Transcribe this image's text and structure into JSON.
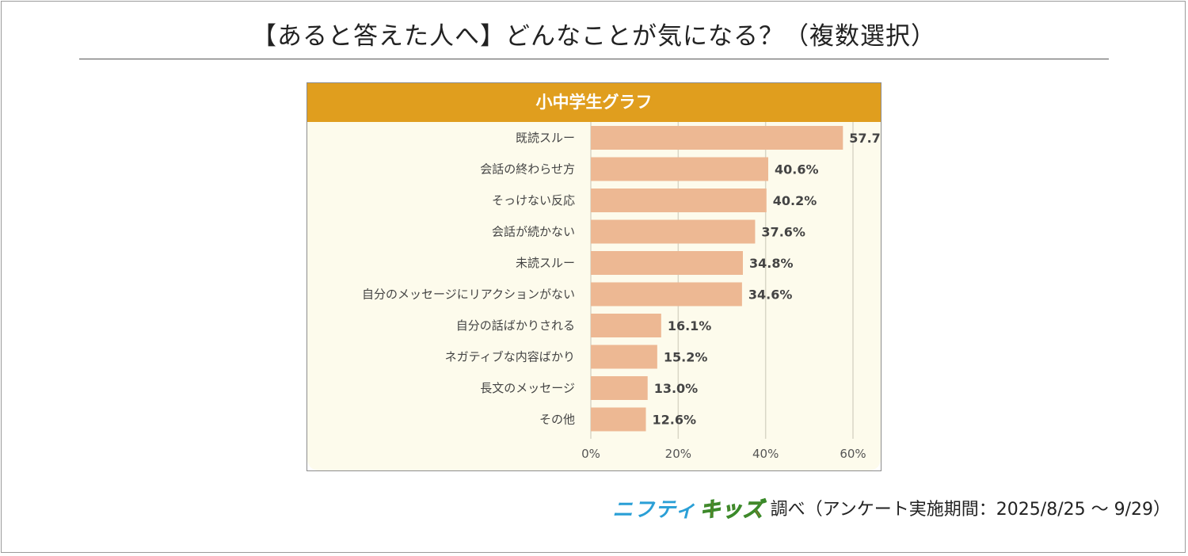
{
  "page": {
    "title": "【あると答えた人へ】どんなことが気になる？（複数選択）",
    "source_brand_1": "ニフティ",
    "source_brand_2": "キッズ",
    "source_text": "調べ（アンケート実施期間：2025/8/25 ～ 9/29）"
  },
  "chart_data": {
    "type": "bar",
    "orientation": "horizontal",
    "title": "小中学生グラフ",
    "categories": [
      "既読スルー",
      "会話の終わらせ方",
      "そっけない反応",
      "会話が続かない",
      "未読スルー",
      "自分のメッセージにリアクションがない",
      "自分の話ばかりされる",
      "ネガティブな内容ばかり",
      "長文のメッセージ",
      "その他"
    ],
    "values": [
      57.7,
      40.6,
      40.2,
      37.6,
      34.8,
      34.6,
      16.1,
      15.2,
      13.0,
      12.6
    ],
    "value_labels": [
      "57.7%",
      "40.6%",
      "40.2%",
      "37.6%",
      "34.8%",
      "34.6%",
      "16.1%",
      "15.2%",
      "13.0%",
      "12.6%"
    ],
    "xlim": [
      0,
      60
    ],
    "xticks": [
      0,
      20,
      40,
      60
    ],
    "xtick_labels": [
      "0%",
      "20%",
      "40%",
      "60%"
    ],
    "grid": true,
    "colors": {
      "bar": "#edb893",
      "header": "#e09e1e",
      "plot_background": "#fdfbec",
      "grid": "#d9d6c6"
    }
  }
}
